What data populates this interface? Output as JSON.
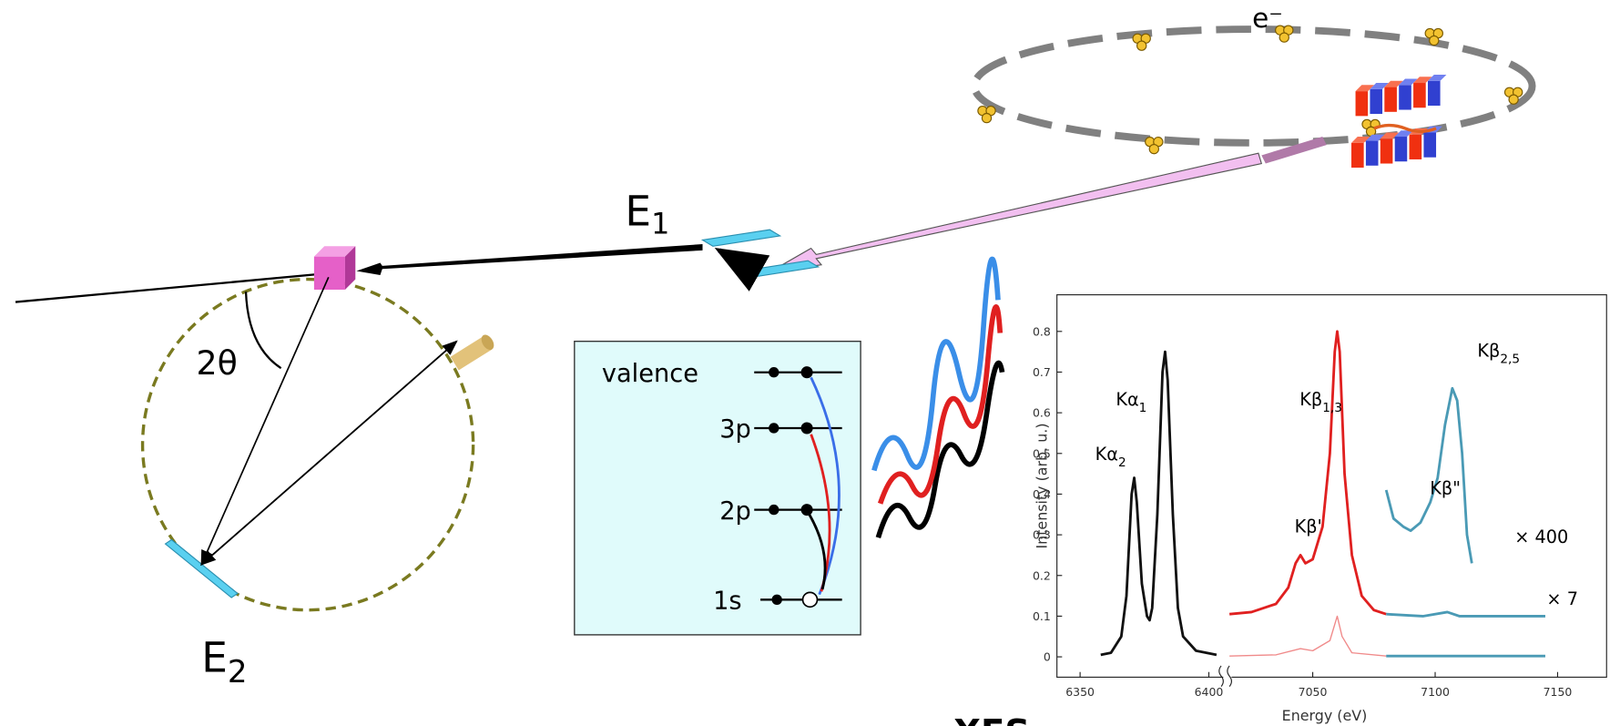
{
  "labels": {
    "electron": "e⁻",
    "e1": {
      "main": "E",
      "sub": "1"
    },
    "e2": {
      "main": "E",
      "sub": "2"
    },
    "angle": "2θ",
    "bottom": "XES"
  },
  "levels": [
    {
      "name": "valence"
    },
    {
      "name": "3p"
    },
    {
      "name": "2p"
    },
    {
      "name": "1s"
    }
  ],
  "plot": {
    "ylabel": "Intensity (arb. u.)",
    "xlabel": "Energy (eV)",
    "ylim": [
      -0.05,
      0.89
    ],
    "yticks": [
      0,
      0.1,
      0.2,
      0.3,
      0.4,
      0.5,
      0.6,
      0.7,
      0.8
    ],
    "segments": [
      {
        "xlim": [
          6341,
          6406
        ],
        "xticks": [
          6350,
          6400
        ],
        "series": [
          {
            "color": "#111111",
            "x": [
              6358,
              6362,
              6366,
              6368,
              6370,
              6371,
              6372,
              6374,
              6376,
              6377,
              6378,
              6380,
              6382,
              6383,
              6384,
              6386,
              6388,
              6390,
              6395,
              6403
            ],
            "y": [
              0.005,
              0.01,
              0.05,
              0.15,
              0.4,
              0.44,
              0.38,
              0.18,
              0.1,
              0.09,
              0.12,
              0.35,
              0.7,
              0.75,
              0.68,
              0.35,
              0.12,
              0.05,
              0.015,
              0.005
            ]
          }
        ]
      },
      {
        "xlim": [
          7016,
          7170
        ],
        "xticks": [
          7050,
          7100,
          7150
        ],
        "series": [
          {
            "color": "#e02020",
            "x": [
              7016,
              7025,
              7035,
              7040,
              7043,
              7045,
              7047,
              7050,
              7054,
              7057,
              7059,
              7060,
              7061,
              7063,
              7066,
              7070,
              7075,
              7080
            ],
            "y": [
              0.105,
              0.11,
              0.13,
              0.17,
              0.23,
              0.25,
              0.23,
              0.24,
              0.32,
              0.5,
              0.75,
              0.8,
              0.75,
              0.45,
              0.25,
              0.15,
              0.115,
              0.105
            ]
          },
          {
            "color": "#4a9ab5",
            "x": [
              7080,
              7095,
              7105,
              7110,
              7125,
              7145
            ],
            "y": [
              0.105,
              0.1,
              0.11,
              0.1,
              0.1,
              0.1
            ]
          },
          {
            "color": "#f08a8a",
            "x": [
              7016,
              7035,
              7045,
              7050,
              7057,
              7060,
              7062,
              7066,
              7080
            ],
            "y": [
              0.002,
              0.005,
              0.02,
              0.015,
              0.04,
              0.1,
              0.05,
              0.01,
              0.002
            ]
          },
          {
            "color": "#4a9ab5",
            "x": [
              7080,
              7145
            ],
            "y": [
              0.002,
              0.002
            ]
          },
          {
            "color": "#4a9ab5",
            "x": [
              7080,
              7083,
              7087,
              7090,
              7094,
              7098,
              7101,
              7104,
              7107,
              7109,
              7111,
              7113,
              7115
            ],
            "y": [
              0.41,
              0.34,
              0.32,
              0.31,
              0.33,
              0.38,
              0.44,
              0.57,
              0.66,
              0.63,
              0.5,
              0.3,
              0.23
            ]
          }
        ]
      }
    ],
    "annotations": [
      {
        "text": "Kα",
        "sub": "2"
      },
      {
        "text": "Kα",
        "sub": "1"
      },
      {
        "text": "Kβ",
        "sub": "1,3"
      },
      {
        "text": "Kβ",
        "sub": "2,5"
      },
      {
        "text": "Kβ'"
      },
      {
        "text": "Kβ\""
      },
      {
        "text": "× 400"
      },
      {
        "text": "× 7"
      }
    ]
  }
}
